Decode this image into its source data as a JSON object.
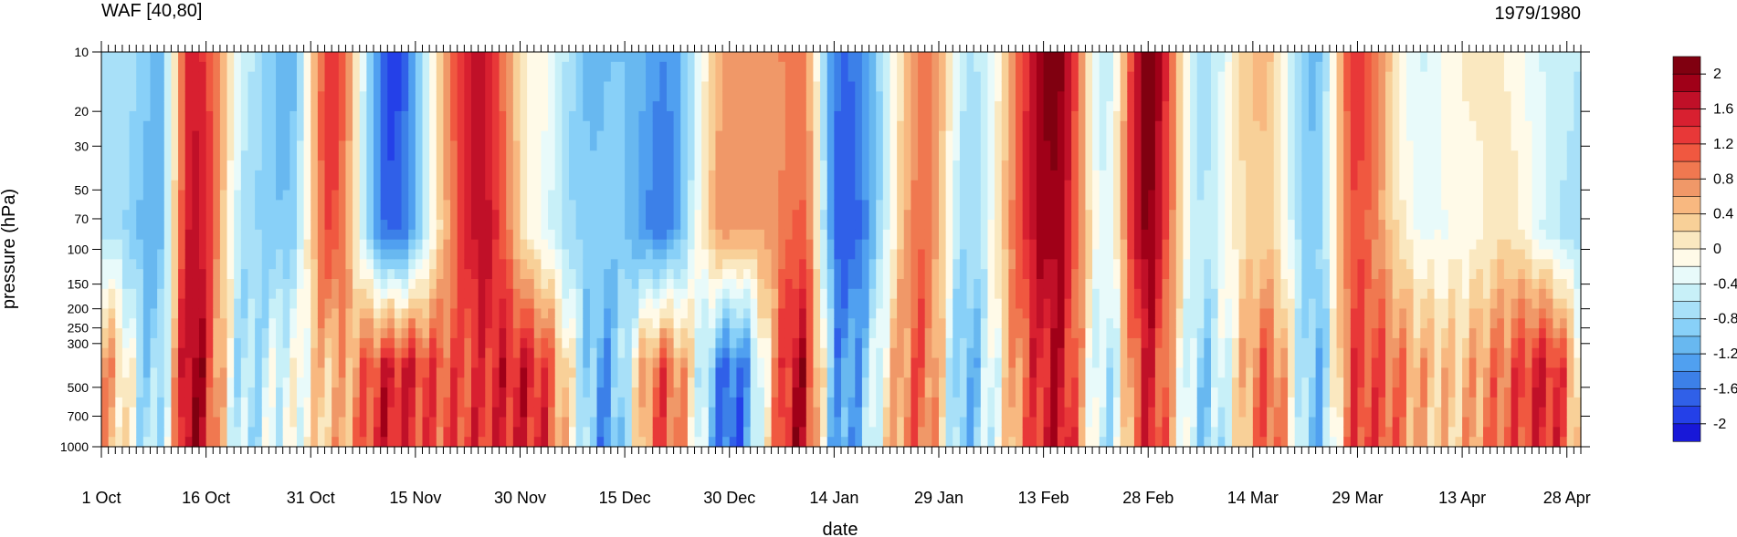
{
  "chart_data": {
    "type": "heatmap",
    "title_left": "WAF [40,80]",
    "title_right": "1979/1980",
    "xlabel": "date",
    "ylabel": "pressure (hPa)",
    "x_ticks": [
      "1 Oct",
      "16 Oct",
      "31 Oct",
      "15 Nov",
      "30 Nov",
      "15 Dec",
      "30 Dec",
      "14 Jan",
      "29 Jan",
      "13 Feb",
      "28 Feb",
      "14 Mar",
      "29 Mar",
      "13 Apr",
      "28 Apr"
    ],
    "y_ticks": [
      10,
      20,
      30,
      50,
      70,
      100,
      150,
      200,
      250,
      300,
      500,
      700,
      1000
    ],
    "y_scale": "log",
    "ylim": [
      1000,
      10
    ],
    "color_levels": [
      -2,
      -1.8,
      -1.6,
      -1.4,
      -1.2,
      -1,
      -0.8,
      -0.6,
      -0.4,
      -0.2,
      0,
      0.2,
      0.4,
      0.6,
      0.8,
      1,
      1.2,
      1.4,
      1.6,
      1.8,
      2
    ],
    "colorbar_labels": [
      "2",
      "1.6",
      "1.2",
      "0.8",
      "0.4",
      "0",
      "-0.4",
      "-0.8",
      "-1.2",
      "-1.6",
      "-2"
    ],
    "colors": [
      "#1818d8",
      "#2440e8",
      "#3060e8",
      "#3c80e8",
      "#50a0f0",
      "#68b8f0",
      "#88d0f8",
      "#a8e0f8",
      "#c8f0f8",
      "#e8fafa",
      "#fffae8",
      "#fae8c0",
      "#f8d098",
      "#f8b880",
      "#f09868",
      "#f07850",
      "#f05840",
      "#e83838",
      "#d82030",
      "#c01028",
      "#a00018",
      "#800010"
    ],
    "series": [
      {
        "day": 1,
        "surf": 0.6,
        "strat": -0.8
      },
      {
        "day": 8,
        "surf": -0.8,
        "strat": -1.0
      },
      {
        "day": 13,
        "surf": 1.8,
        "strat": 1.6
      },
      {
        "day": 21,
        "surf": -0.6,
        "strat": -0.6
      },
      {
        "day": 27,
        "surf": -0.4,
        "strat": -1.0
      },
      {
        "day": 33,
        "surf": 0.6,
        "strat": 1.2
      },
      {
        "day": 42,
        "surf": 1.4,
        "strat": -1.8
      },
      {
        "day": 54,
        "surf": 1.2,
        "strat": 1.8
      },
      {
        "day": 62,
        "surf": 1.6,
        "strat": -0.2
      },
      {
        "day": 72,
        "surf": -1.4,
        "strat": -1.0
      },
      {
        "day": 80,
        "surf": 1.2,
        "strat": -1.4
      },
      {
        "day": 90,
        "surf": -1.6,
        "strat": 0.6
      },
      {
        "day": 100,
        "surf": 1.6,
        "strat": 1.0
      },
      {
        "day": 106,
        "surf": -1.2,
        "strat": -1.8
      },
      {
        "day": 118,
        "surf": 1.0,
        "strat": 0.8
      },
      {
        "day": 124,
        "surf": -1.0,
        "strat": -0.6
      },
      {
        "day": 137,
        "surf": 1.8,
        "strat": 2.0
      },
      {
        "day": 144,
        "surf": -0.8,
        "strat": -0.4
      },
      {
        "day": 150,
        "surf": 1.6,
        "strat": 2.0
      },
      {
        "day": 158,
        "surf": -1.0,
        "strat": -0.6
      },
      {
        "day": 167,
        "surf": 1.2,
        "strat": 0.4
      },
      {
        "day": 174,
        "surf": -1.2,
        "strat": -1.0
      },
      {
        "day": 180,
        "surf": 1.4,
        "strat": 1.2
      },
      {
        "day": 190,
        "surf": 0.4,
        "strat": -0.4
      },
      {
        "day": 200,
        "surf": 0.8,
        "strat": 0.2
      },
      {
        "day": 208,
        "surf": 1.6,
        "strat": -0.6
      },
      {
        "day": 212,
        "surf": 0.4,
        "strat": -0.6
      }
    ]
  }
}
